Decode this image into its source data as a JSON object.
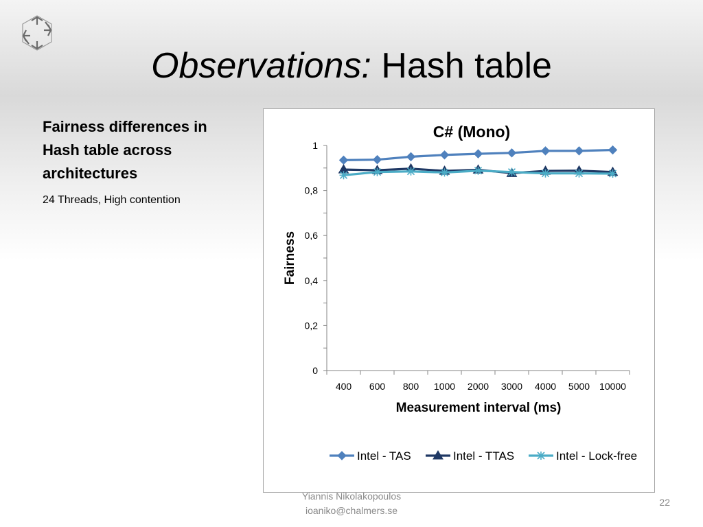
{
  "slide": {
    "title_italic": "Observations:",
    "title_rest": " Hash table",
    "heading": "Fairness differences in Hash table across architectures",
    "subheading": "24 Threads, High contention",
    "author": "Yiannis Nikolakopoulos",
    "email": "ioaniko@chalmers.se",
    "page_number": "22",
    "logo_icon": "hexagon-arrows-logo"
  },
  "chart_data": {
    "type": "line",
    "title": "C# (Mono)",
    "xlabel": "Measurement interval (ms)",
    "ylabel": "Fairness",
    "categories": [
      "400",
      "600",
      "800",
      "1000",
      "2000",
      "3000",
      "4000",
      "5000",
      "10000"
    ],
    "ylim": [
      0,
      1
    ],
    "yticks": [
      "0",
      "0,2",
      "0,4",
      "0,6",
      "0,8",
      "1"
    ],
    "legend_position": "bottom",
    "grid": false,
    "series": [
      {
        "name": "Intel - TAS",
        "color": "#4f81bd",
        "marker": "diamond",
        "values": [
          0.935,
          0.937,
          0.95,
          0.958,
          0.963,
          0.967,
          0.976,
          0.976,
          0.98
        ]
      },
      {
        "name": "Intel - TTAS",
        "color": "#1f3864",
        "marker": "triangle",
        "values": [
          0.893,
          0.89,
          0.897,
          0.887,
          0.892,
          0.877,
          0.887,
          0.888,
          0.882
        ]
      },
      {
        "name": "Intel - Lock-free",
        "color": "#4bacc6",
        "marker": "star",
        "values": [
          0.868,
          0.882,
          0.885,
          0.88,
          0.888,
          0.882,
          0.876,
          0.876,
          0.875
        ]
      }
    ]
  }
}
